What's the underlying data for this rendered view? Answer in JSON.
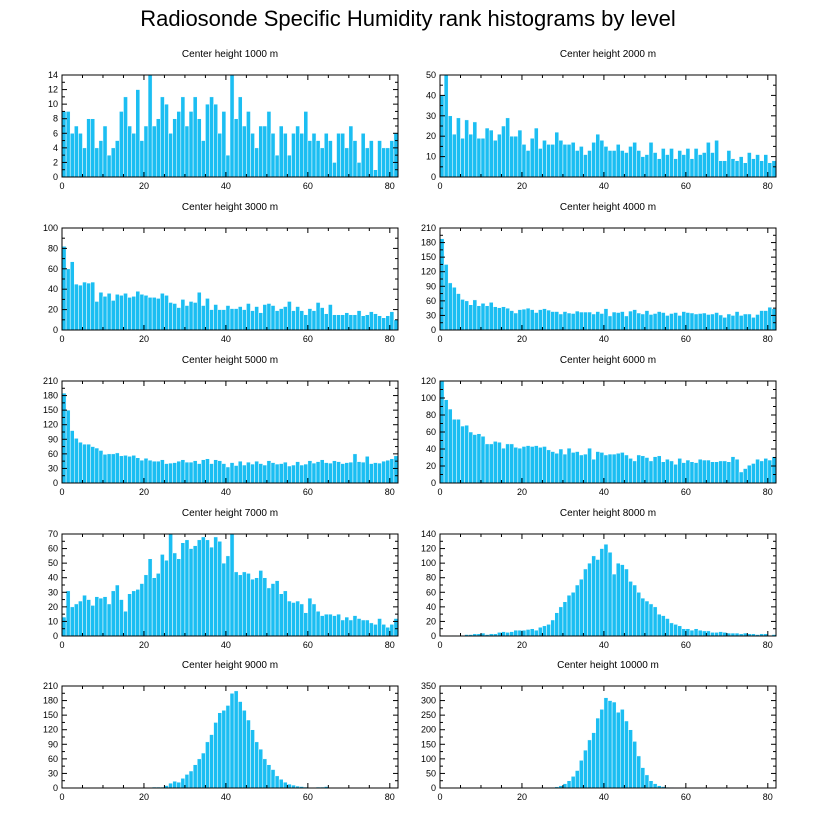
{
  "title": "Radiosonde Specific Humidity rank histograms by level",
  "chart_data": [
    {
      "type": "bar",
      "title": "Center height 1000 m",
      "xlim": [
        0,
        82
      ],
      "ylim": [
        0,
        14
      ],
      "xticks": [
        0,
        20,
        40,
        60,
        80
      ],
      "yticks": [
        0,
        2,
        4,
        6,
        8,
        10,
        12,
        14
      ],
      "values": [
        9,
        9,
        6,
        7,
        6,
        4,
        8,
        8,
        4,
        5,
        7,
        3,
        4,
        5,
        9,
        11,
        7,
        6,
        12,
        5,
        7,
        14,
        7,
        8,
        11,
        10,
        6,
        8,
        9,
        11,
        7,
        9,
        11,
        8,
        5,
        10,
        11,
        10,
        6,
        9,
        3,
        14,
        8,
        11,
        7,
        9,
        6,
        4,
        7,
        7,
        9,
        6,
        3,
        7,
        6,
        3,
        6,
        7,
        6,
        9,
        5,
        6,
        5,
        4,
        6,
        5,
        2,
        6,
        6,
        4,
        7,
        5,
        2,
        6,
        4,
        5,
        1,
        5,
        4,
        4,
        5,
        6
      ]
    },
    {
      "type": "bar",
      "title": "Center height 2000 m",
      "xlim": [
        0,
        82
      ],
      "ylim": [
        0,
        50
      ],
      "xticks": [
        0,
        20,
        40,
        60,
        80
      ],
      "yticks": [
        0,
        10,
        20,
        30,
        40,
        50
      ],
      "values": [
        40,
        50,
        30,
        21,
        29,
        19,
        28,
        21,
        27,
        19,
        19,
        24,
        23,
        18,
        21,
        25,
        29,
        20,
        20,
        23,
        16,
        13,
        19,
        24,
        14,
        18,
        16,
        16,
        22,
        18,
        16,
        16,
        17,
        13,
        15,
        11,
        13,
        17,
        21,
        18,
        15,
        13,
        13,
        16,
        13,
        12,
        15,
        17,
        13,
        10,
        11,
        17,
        12,
        9,
        14,
        11,
        14,
        9,
        13,
        11,
        14,
        9,
        14,
        11,
        12,
        17,
        12,
        18,
        8,
        8,
        13,
        9,
        8,
        10,
        7,
        12,
        9,
        11,
        8,
        11,
        7,
        8
      ]
    },
    {
      "type": "bar",
      "title": "Center height 3000 m",
      "xlim": [
        0,
        82
      ],
      "ylim": [
        0,
        100
      ],
      "xticks": [
        0,
        20,
        40,
        60,
        80
      ],
      "yticks": [
        0,
        20,
        40,
        60,
        80,
        100
      ],
      "values": [
        82,
        60,
        67,
        45,
        44,
        47,
        46,
        47,
        28,
        37,
        33,
        36,
        29,
        35,
        34,
        36,
        32,
        33,
        38,
        35,
        34,
        32,
        32,
        31,
        36,
        34,
        27,
        26,
        22,
        30,
        24,
        28,
        27,
        37,
        24,
        31,
        20,
        25,
        20,
        20,
        24,
        21,
        21,
        23,
        20,
        26,
        19,
        23,
        17,
        25,
        26,
        24,
        19,
        21,
        23,
        28,
        19,
        23,
        19,
        15,
        21,
        19,
        27,
        22,
        16,
        25,
        15,
        15,
        15,
        17,
        15,
        15,
        19,
        14,
        15,
        18,
        16,
        14,
        12,
        14,
        18,
        10
      ]
    },
    {
      "type": "bar",
      "title": "Center height 4000 m",
      "xlim": [
        0,
        82
      ],
      "ylim": [
        0,
        210
      ],
      "xticks": [
        0,
        20,
        40,
        60,
        80
      ],
      "yticks": [
        0,
        30,
        60,
        90,
        120,
        150,
        180,
        210
      ],
      "values": [
        188,
        135,
        97,
        88,
        75,
        63,
        60,
        52,
        62,
        50,
        55,
        50,
        57,
        48,
        46,
        48,
        45,
        40,
        35,
        42,
        43,
        45,
        42,
        36,
        42,
        44,
        41,
        38,
        38,
        33,
        38,
        35,
        34,
        39,
        37,
        37,
        37,
        33,
        38,
        34,
        44,
        29,
        37,
        36,
        38,
        29,
        39,
        42,
        35,
        33,
        40,
        32,
        34,
        38,
        36,
        30,
        34,
        36,
        30,
        38,
        36,
        35,
        33,
        34,
        35,
        32,
        33,
        36,
        31,
        26,
        33,
        30,
        38,
        30,
        33,
        33,
        26,
        32,
        40,
        40,
        47,
        44
      ]
    },
    {
      "type": "bar",
      "title": "Center height 5000 m",
      "xlim": [
        0,
        82
      ],
      "ylim": [
        0,
        210
      ],
      "xticks": [
        0,
        20,
        40,
        60,
        80
      ],
      "yticks": [
        0,
        30,
        60,
        90,
        120,
        150,
        180,
        210
      ],
      "values": [
        185,
        150,
        108,
        92,
        84,
        80,
        80,
        75,
        72,
        67,
        59,
        60,
        60,
        62,
        56,
        57,
        55,
        57,
        52,
        47,
        51,
        47,
        45,
        45,
        48,
        40,
        41,
        42,
        45,
        48,
        43,
        43,
        46,
        40,
        48,
        50,
        40,
        48,
        46,
        40,
        33,
        42,
        36,
        45,
        37,
        43,
        39,
        45,
        40,
        37,
        46,
        42,
        39,
        40,
        43,
        35,
        37,
        44,
        37,
        39,
        46,
        41,
        44,
        48,
        42,
        41,
        46,
        44,
        40,
        42,
        43,
        60,
        44,
        43,
        55,
        40,
        42,
        41,
        45,
        47,
        50,
        56
      ]
    },
    {
      "type": "bar",
      "title": "Center height 6000 m",
      "xlim": [
        0,
        82
      ],
      "ylim": [
        0,
        120
      ],
      "xticks": [
        0,
        20,
        40,
        60,
        80
      ],
      "yticks": [
        0,
        20,
        40,
        60,
        80,
        100,
        120
      ],
      "values": [
        120,
        98,
        87,
        75,
        75,
        67,
        68,
        60,
        57,
        58,
        55,
        46,
        46,
        49,
        48,
        41,
        46,
        46,
        42,
        41,
        43,
        44,
        43,
        44,
        42,
        43,
        39,
        37,
        35,
        40,
        34,
        41,
        36,
        37,
        33,
        34,
        41,
        28,
        37,
        36,
        33,
        34,
        34,
        35,
        36,
        33,
        29,
        26,
        33,
        32,
        30,
        26,
        31,
        32,
        25,
        28,
        26,
        22,
        29,
        24,
        27,
        25,
        24,
        28,
        27,
        27,
        25,
        25,
        26,
        26,
        25,
        31,
        28,
        13,
        17,
        21,
        23,
        28,
        26,
        29,
        27,
        31
      ]
    },
    {
      "type": "bar",
      "title": "Center height 7000 m",
      "xlim": [
        0,
        82
      ],
      "ylim": [
        0,
        70
      ],
      "xticks": [
        0,
        20,
        40,
        60,
        80
      ],
      "yticks": [
        0,
        10,
        20,
        30,
        40,
        50,
        60,
        70
      ],
      "values": [
        13,
        31,
        20,
        22,
        24,
        28,
        25,
        21,
        27,
        26,
        27,
        22,
        31,
        35,
        25,
        17,
        29,
        31,
        32,
        36,
        42,
        53,
        40,
        43,
        56,
        52,
        70,
        57,
        53,
        64,
        66,
        60,
        62,
        66,
        68,
        66,
        61,
        68,
        65,
        50,
        55,
        70,
        44,
        42,
        44,
        43,
        39,
        40,
        45,
        40,
        33,
        36,
        38,
        29,
        31,
        24,
        23,
        24,
        22,
        16,
        26,
        22,
        17,
        14,
        15,
        15,
        14,
        15,
        11,
        13,
        11,
        14,
        12,
        11,
        11,
        9,
        8,
        12,
        8,
        6,
        8,
        12
      ]
    },
    {
      "type": "bar",
      "title": "Center height 8000 m",
      "xlim": [
        0,
        82
      ],
      "ylim": [
        0,
        140
      ],
      "xticks": [
        0,
        20,
        40,
        60,
        80
      ],
      "yticks": [
        0,
        20,
        40,
        60,
        80,
        100,
        120,
        140
      ],
      "values": [
        1,
        0,
        0,
        1,
        0,
        1,
        2,
        2,
        3,
        3,
        4,
        2,
        3,
        3,
        5,
        6,
        5,
        6,
        8,
        8,
        8,
        9,
        10,
        8,
        12,
        14,
        16,
        22,
        32,
        40,
        47,
        56,
        60,
        70,
        78,
        92,
        100,
        110,
        105,
        120,
        126,
        115,
        85,
        100,
        98,
        92,
        75,
        70,
        60,
        52,
        48,
        44,
        40,
        30,
        28,
        24,
        18,
        16,
        14,
        10,
        10,
        8,
        10,
        8,
        7,
        7,
        5,
        5,
        6,
        5,
        4,
        4,
        4,
        3,
        4,
        3,
        3,
        2,
        3,
        3,
        1,
        2
      ]
    },
    {
      "type": "bar",
      "title": "Center height 9000 m",
      "xlim": [
        0,
        82
      ],
      "ylim": [
        0,
        210
      ],
      "xticks": [
        0,
        20,
        40,
        60,
        80
      ],
      "yticks": [
        0,
        30,
        60,
        90,
        120,
        150,
        180,
        210
      ],
      "values": [
        0,
        0,
        0,
        0,
        0,
        0,
        0,
        0,
        0,
        0,
        0,
        0,
        0,
        0,
        0,
        0,
        0,
        0,
        0,
        0,
        1,
        1,
        2,
        2,
        2,
        5,
        10,
        14,
        12,
        20,
        28,
        35,
        48,
        60,
        72,
        95,
        110,
        135,
        155,
        160,
        170,
        195,
        200,
        178,
        160,
        140,
        120,
        95,
        80,
        60,
        48,
        38,
        25,
        18,
        12,
        8,
        6,
        4,
        3,
        2,
        1,
        1,
        2,
        2,
        3,
        1,
        1,
        1,
        0,
        0,
        0,
        0,
        0,
        0,
        0,
        0,
        0,
        0,
        0,
        0,
        0,
        0
      ]
    },
    {
      "type": "bar",
      "title": "Center height 10000 m",
      "xlim": [
        0,
        82
      ],
      "ylim": [
        0,
        350
      ],
      "xticks": [
        0,
        20,
        40,
        60,
        80
      ],
      "yticks": [
        0,
        50,
        100,
        150,
        200,
        250,
        300,
        350
      ],
      "values": [
        0,
        0,
        0,
        0,
        0,
        0,
        0,
        0,
        0,
        0,
        0,
        0,
        0,
        0,
        0,
        0,
        0,
        0,
        0,
        0,
        0,
        0,
        0,
        0,
        0,
        0,
        1,
        2,
        4,
        8,
        15,
        25,
        40,
        60,
        95,
        130,
        165,
        190,
        240,
        270,
        310,
        300,
        295,
        260,
        270,
        230,
        200,
        160,
        110,
        70,
        45,
        25,
        15,
        8,
        5,
        3,
        2,
        1,
        1,
        1,
        0,
        0,
        0,
        0,
        0,
        0,
        0,
        0,
        0,
        0,
        0,
        0,
        0,
        0,
        0,
        0,
        0,
        0,
        0,
        0,
        0,
        0
      ]
    }
  ]
}
